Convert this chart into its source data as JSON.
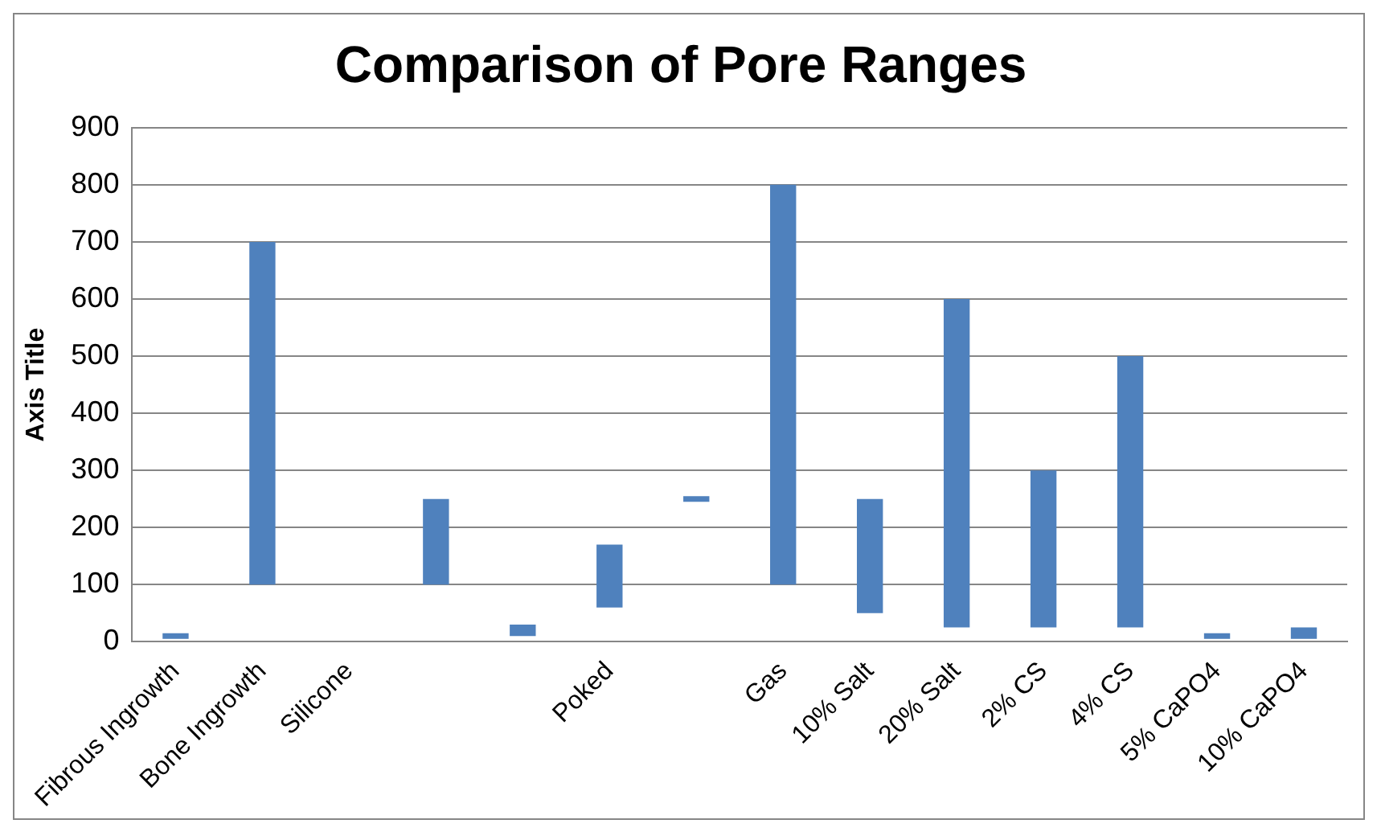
{
  "chart_data": {
    "type": "bar",
    "title": "Comparison of Pore Ranges",
    "ylabel": "Axis Title",
    "categories": [
      "Fibrous Ingrowth",
      "Bone Ingrowth",
      "Silicone",
      null,
      null,
      "Poked",
      null,
      "Gas",
      "10% Salt",
      "20% Salt",
      "2% CS",
      "4% CS",
      "5% CaPO4",
      "10% CaPO4"
    ],
    "base": [
      5,
      100,
      null,
      100,
      10,
      60,
      245,
      100,
      50,
      25,
      25,
      25,
      5,
      5
    ],
    "values": [
      10,
      600,
      null,
      150,
      20,
      110,
      10,
      700,
      200,
      575,
      275,
      475,
      10,
      20
    ],
    "color": "#4f81bd",
    "ylim": [
      0,
      900
    ],
    "yticks": [
      0,
      100,
      200,
      300,
      400,
      500,
      600,
      700,
      800,
      900
    ],
    "grid": "y",
    "legend": false
  }
}
